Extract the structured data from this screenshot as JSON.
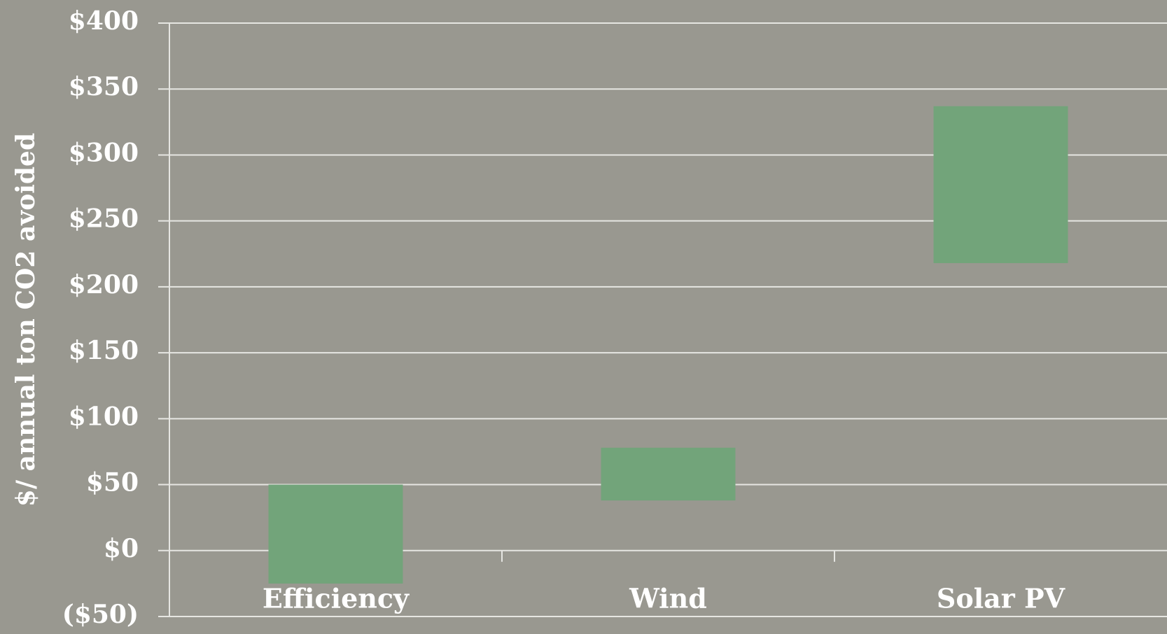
{
  "chart_data": {
    "type": "floatingbar",
    "y_label": "$/ annual ton CO2 avoided",
    "categories": [
      "Efficiency",
      "Wind",
      "Solar PV"
    ],
    "low": [
      -25,
      38,
      218
    ],
    "high": [
      50,
      78,
      337
    ],
    "color": "#72a47a",
    "ylim": [
      -50,
      400
    ],
    "yticks": [
      {
        "value": -50,
        "label": "($50)"
      },
      {
        "value": 0,
        "label": "$0"
      },
      {
        "value": 50,
        "label": "$50"
      },
      {
        "value": 100,
        "label": "$100"
      },
      {
        "value": 150,
        "label": "$150"
      },
      {
        "value": 200,
        "label": "$200"
      },
      {
        "value": 250,
        "label": "$250"
      },
      {
        "value": 300,
        "label": "$300"
      },
      {
        "value": 350,
        "label": "$350"
      },
      {
        "value": 400,
        "label": "$400"
      }
    ],
    "grid": true
  }
}
